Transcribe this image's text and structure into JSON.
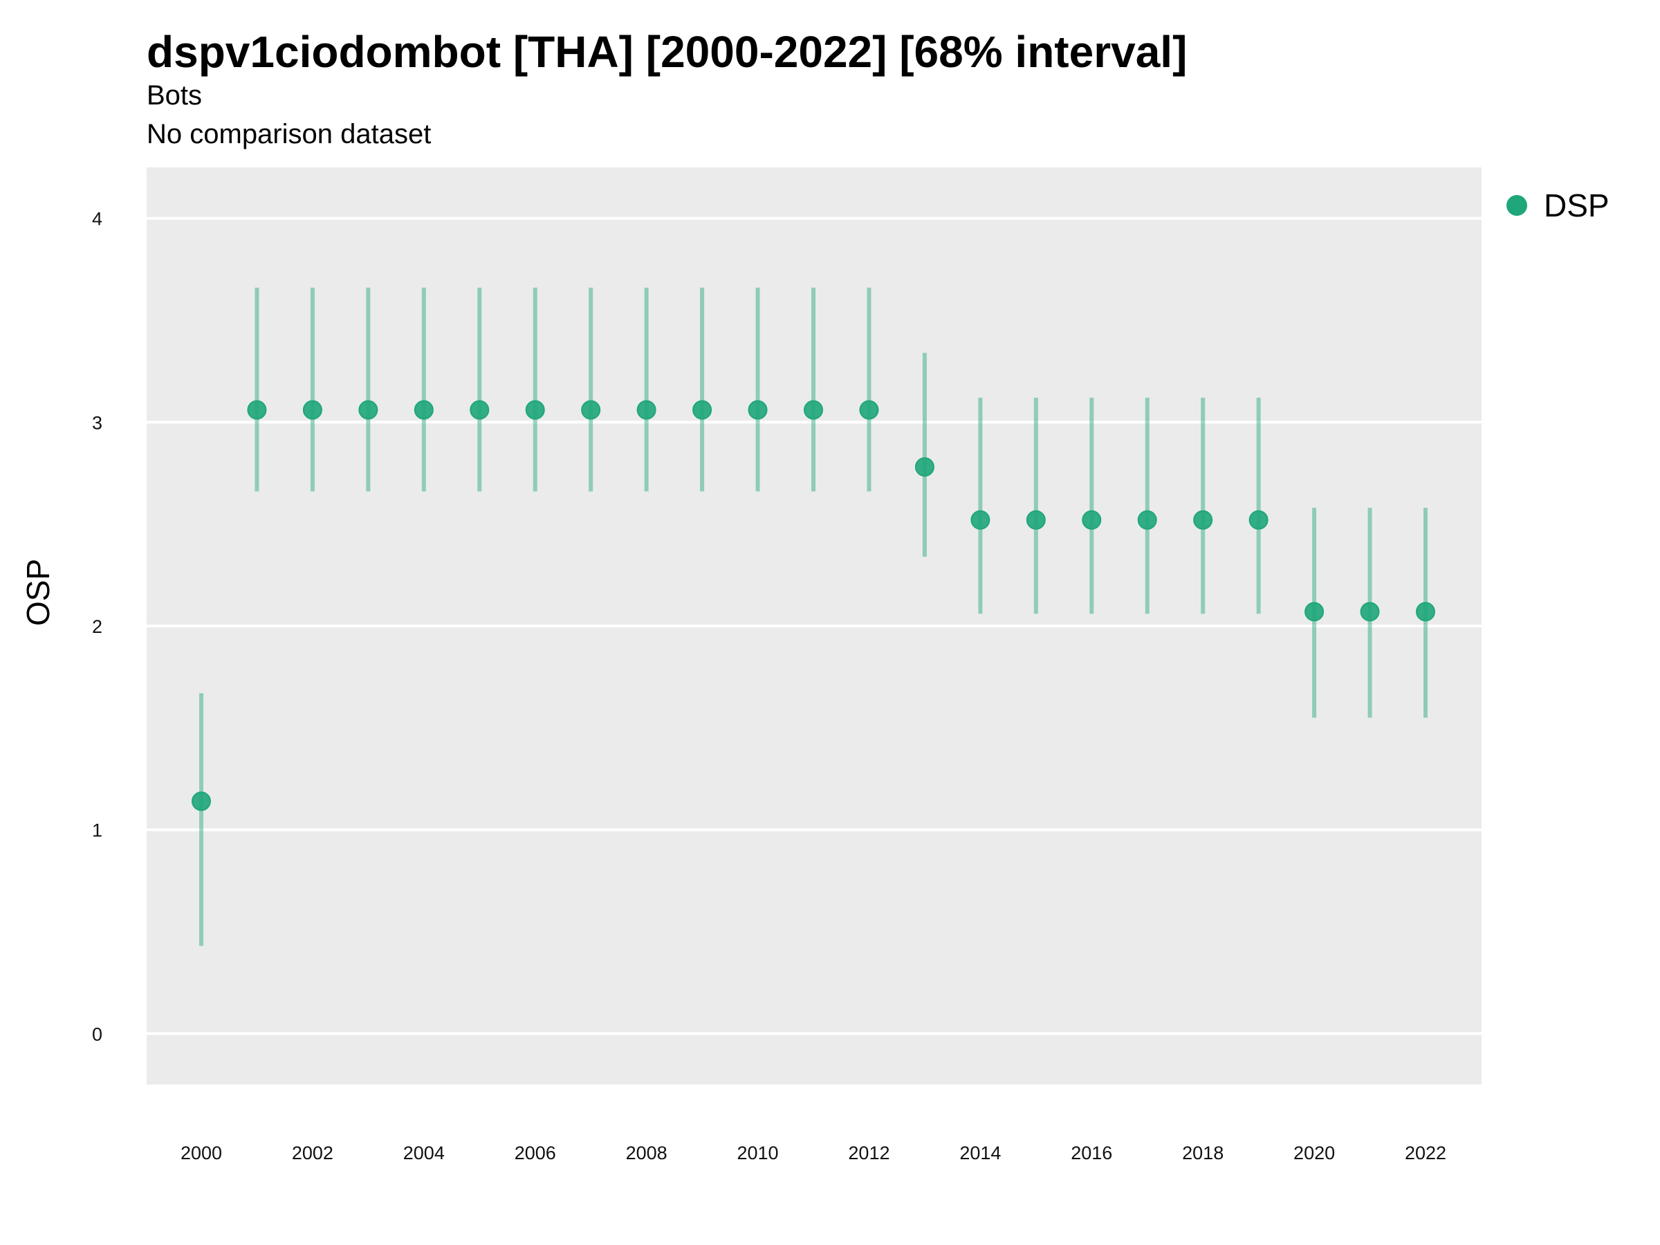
{
  "chart_data": {
    "type": "scatter",
    "title": "dspv1ciodombot [THA] [2000-2022] [68% interval]",
    "subtitle": "Bots",
    "caption": "No comparison dataset",
    "xlabel": "",
    "ylabel": "OSP",
    "xlim": [
      2000,
      2022
    ],
    "ylim": [
      -0.25,
      4.25
    ],
    "yticks": [
      0,
      1,
      2,
      3,
      4
    ],
    "xticks": [
      2000,
      2002,
      2004,
      2006,
      2008,
      2010,
      2012,
      2014,
      2016,
      2018,
      2020,
      2022
    ],
    "grid": true,
    "legend_position": "right",
    "series": [
      {
        "name": "DSP",
        "color": "#1fa67a",
        "x": [
          2000,
          2001,
          2002,
          2003,
          2004,
          2005,
          2006,
          2007,
          2008,
          2009,
          2010,
          2011,
          2012,
          2013,
          2014,
          2015,
          2016,
          2017,
          2018,
          2019,
          2020,
          2021,
          2022
        ],
        "y": [
          1.14,
          3.06,
          3.06,
          3.06,
          3.06,
          3.06,
          3.06,
          3.06,
          3.06,
          3.06,
          3.06,
          3.06,
          3.06,
          2.78,
          2.52,
          2.52,
          2.52,
          2.52,
          2.52,
          2.52,
          2.07,
          2.07,
          2.07
        ],
        "lower": [
          0.43,
          2.66,
          2.66,
          2.66,
          2.66,
          2.66,
          2.66,
          2.66,
          2.66,
          2.66,
          2.66,
          2.66,
          2.66,
          2.34,
          2.06,
          2.06,
          2.06,
          2.06,
          2.06,
          2.06,
          1.55,
          1.55,
          1.55
        ],
        "upper": [
          1.67,
          3.66,
          3.66,
          3.66,
          3.66,
          3.66,
          3.66,
          3.66,
          3.66,
          3.66,
          3.66,
          3.66,
          3.66,
          3.34,
          3.12,
          3.12,
          3.12,
          3.12,
          3.12,
          3.12,
          2.58,
          2.58,
          2.58
        ]
      }
    ]
  }
}
